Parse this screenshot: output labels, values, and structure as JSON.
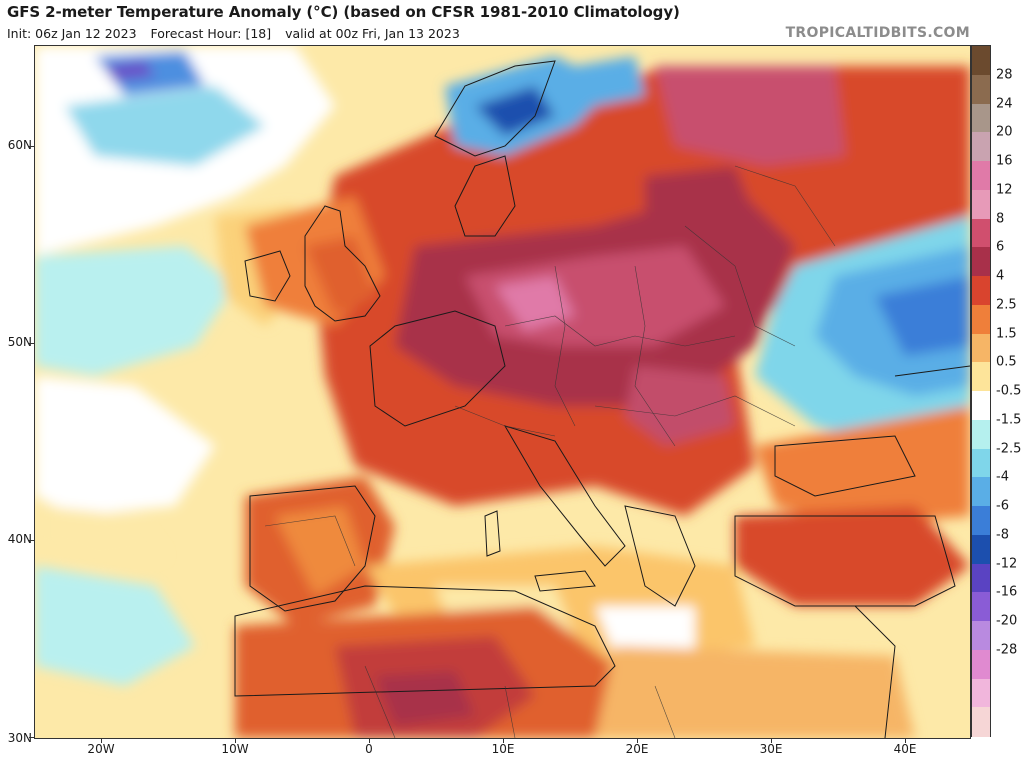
{
  "header": {
    "title": "GFS 2-meter Temperature Anomaly (°C) (based on CFSR 1981-2010 Climatology)",
    "init": "Init: 06z Jan 12 2023",
    "forecast_hour": "Forecast Hour: [18]",
    "valid": "valid at 00z Fri, Jan 13 2023",
    "credit": "TROPICALTIDBITS.COM"
  },
  "axes": {
    "lat_labels": [
      "60N",
      "50N",
      "40N",
      "30N"
    ],
    "lon_labels": [
      "20W",
      "10W",
      "0",
      "10E",
      "20E",
      "30E",
      "40E"
    ]
  },
  "colorbar": {
    "labels": [
      "28",
      "24",
      "20",
      "16",
      "12",
      "8",
      "6",
      "4",
      "2.5",
      "1.5",
      "0.5",
      "-0.5",
      "-1.5",
      "-2.5",
      "-4",
      "-6",
      "-8",
      "-12",
      "-16",
      "-20",
      "-28"
    ],
    "colors": [
      "#6b4a2e",
      "#8b6b4f",
      "#a8968a",
      "#c9a3b0",
      "#e07aa8",
      "#e79ab8",
      "#d04f6e",
      "#a8304a",
      "#d9442e",
      "#ef7f3a",
      "#f6b566",
      "#fde49a",
      "#ffffff",
      "#b5f0ee",
      "#7fd6ea",
      "#5aaee6",
      "#3b7ed8",
      "#1c4fae",
      "#5a43c2",
      "#8a5cd6",
      "#b98ae0",
      "#e08ad0",
      "#f1b6dc",
      "#f6d6d6"
    ]
  }
}
